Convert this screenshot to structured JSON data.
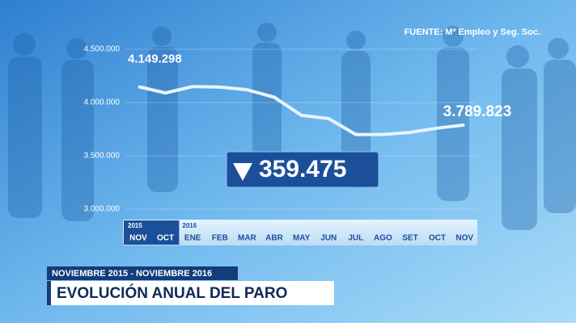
{
  "chart_data": {
    "type": "line",
    "source": "FUENTE: Mº Empleo y Seg. Soc.",
    "subtitle": "NOVIEMBRE 2015 - NOVIEMBRE 2016",
    "title": "EVOLUCIÓN ANUAL DEL PARO",
    "category_groups": [
      {
        "label": "2015",
        "categories": [
          "NOV",
          "OCT"
        ]
      },
      {
        "label": "2016",
        "categories": [
          "ENE",
          "FEB",
          "MAR",
          "ABR",
          "MAY",
          "JUN",
          "JUL",
          "AGO",
          "SET",
          "OCT",
          "NOV"
        ]
      }
    ],
    "values": [
      4149298,
      4090000,
      4150000,
      4145000,
      4120000,
      4050000,
      3880000,
      3850000,
      3700000,
      3700000,
      3720000,
      3760000,
      3789823
    ],
    "value_labels": [
      "4.149.298",
      null,
      null,
      null,
      null,
      null,
      null,
      null,
      null,
      null,
      null,
      null,
      "3.789.823"
    ],
    "color": "#e8f4ff",
    "ylim": [
      3000000,
      4500000
    ],
    "yticks": [
      {
        "value": 3000000,
        "label": "3.000.000"
      },
      {
        "value": 3500000,
        "label": "3.500.000"
      },
      {
        "value": 4000000,
        "label": "4.000.000"
      },
      {
        "value": 4500000,
        "label": "4.500.000"
      }
    ],
    "grid": true,
    "change": {
      "value": 359475,
      "label": "359.475",
      "direction": "down"
    }
  }
}
